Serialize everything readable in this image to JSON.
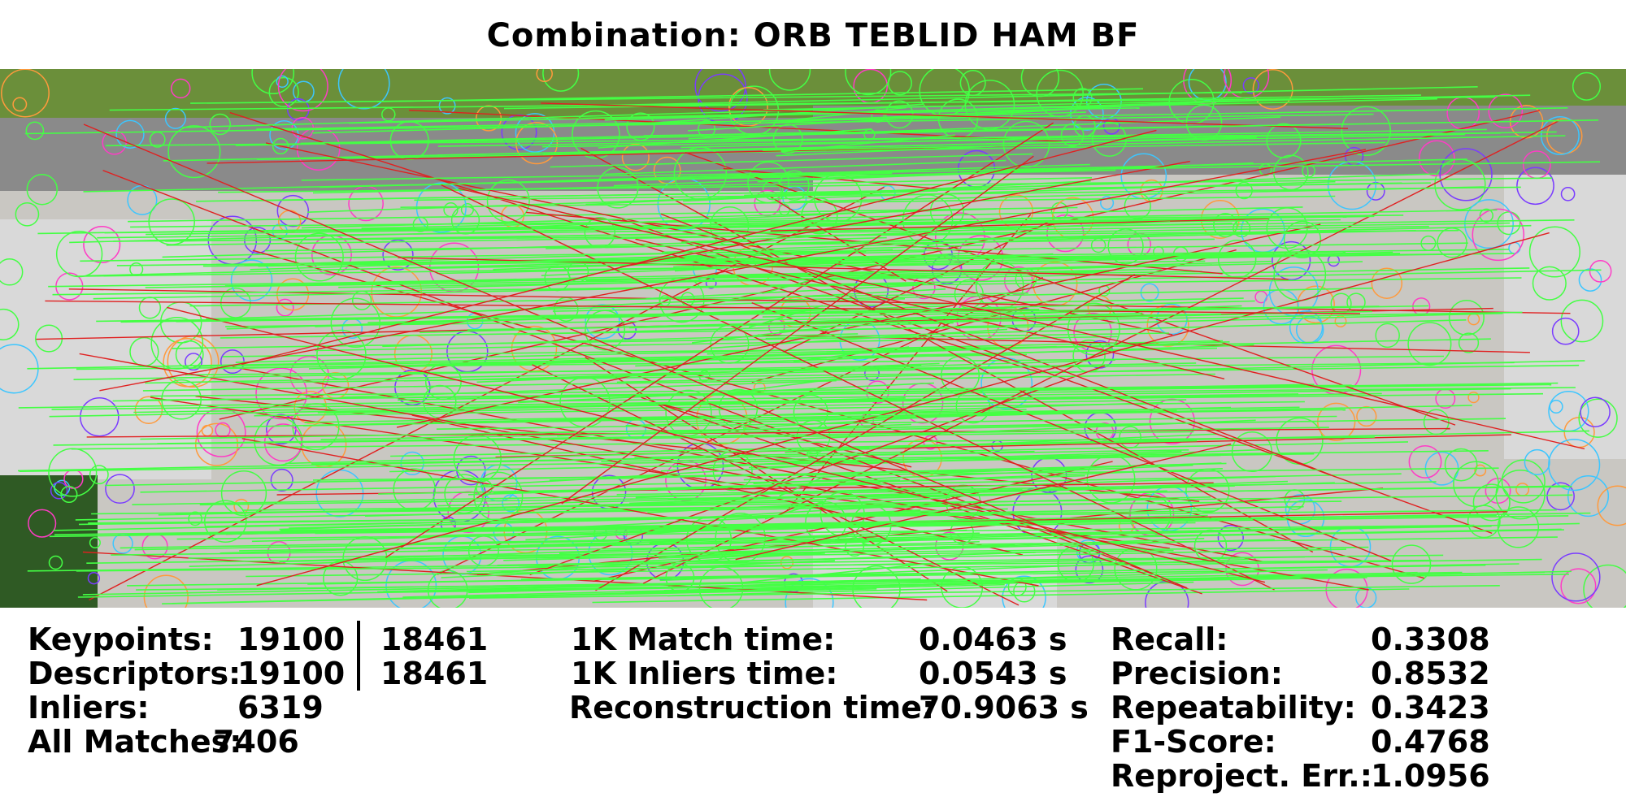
{
  "title": "Combination: ORB TEBLID HAM BF",
  "colors": {
    "inlier": "#44ff44",
    "outlier": "#e02020",
    "grass": "#6b8f3a",
    "road": "#8a8a8a",
    "pavement": "#c9c7c2",
    "roof": "#d9d9d9",
    "hedge": "#2f5a24"
  },
  "left_stats": [
    {
      "label": "Keypoints:",
      "a": "19100",
      "sep": "|",
      "b": "18461"
    },
    {
      "label": "Descriptors:",
      "a": "19100",
      "sep": "|",
      "b": "18461"
    },
    {
      "label": "Inliers:",
      "a": "6319"
    },
    {
      "label": "All Matches:",
      "a": "7406"
    }
  ],
  "mid_stats": [
    {
      "label": "1K Match time:",
      "value": "0.0463 s"
    },
    {
      "label": "1K Inliers time:",
      "value": "0.0543 s"
    },
    {
      "label": "Reconstruction time:",
      "value": "70.9063 s"
    }
  ],
  "right_stats": [
    {
      "label": "Recall:",
      "value": "0.3308"
    },
    {
      "label": "Precision:",
      "value": "0.8532"
    },
    {
      "label": "Repeatability:",
      "value": "0.3423"
    },
    {
      "label": "F1-Score:",
      "value": "0.4768"
    },
    {
      "label": "Reproject. Err.:",
      "value": "1.0956"
    }
  ],
  "stats": {
    "inliers": 6319,
    "all_matches": 7406
  }
}
